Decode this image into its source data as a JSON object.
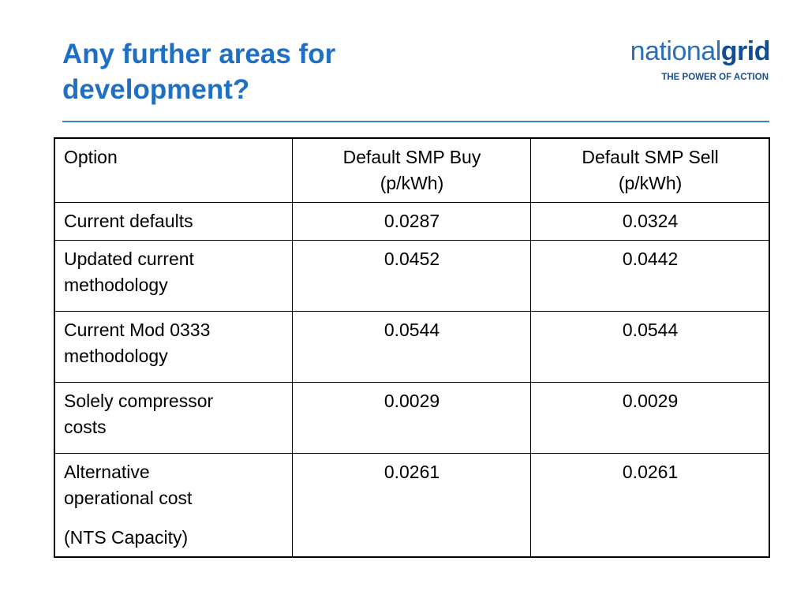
{
  "slide": {
    "title_line1": "Any further areas for",
    "title_line2": "development?"
  },
  "logo": {
    "word_light": "national",
    "word_bold": "grid",
    "tagline": "THE POWER OF ACTION"
  },
  "colors": {
    "title": "#1f6fc5",
    "rule": "#3a84cf",
    "logo_light": "#2b6fb4",
    "logo_bold": "#0f4e96",
    "table_border": "#000000"
  },
  "table": {
    "headers": {
      "option": "Option",
      "buy_line1": "Default SMP Buy",
      "buy_line2": "(p/kWh)",
      "sell_line1": "Default SMP Sell",
      "sell_line2": "(p/kWh)"
    },
    "rows": [
      {
        "option_line1": "Current defaults",
        "buy": "0.0287",
        "sell": "0.0324"
      },
      {
        "option_line1": "Updated current",
        "option_line2": "methodology",
        "buy": "0.0452",
        "sell": "0.0442"
      },
      {
        "option_line1": "Current Mod 0333",
        "option_line2": "methodology",
        "buy": "0.0544",
        "sell": "0.0544"
      },
      {
        "option_line1": "Solely compressor",
        "option_line2": "costs",
        "buy": "0.0029",
        "sell": "0.0029"
      },
      {
        "option_line1": "Alternative",
        "option_line2": "operational cost",
        "option_note": "(NTS Capacity)",
        "buy": "0.0261",
        "sell": "0.0261"
      }
    ]
  }
}
